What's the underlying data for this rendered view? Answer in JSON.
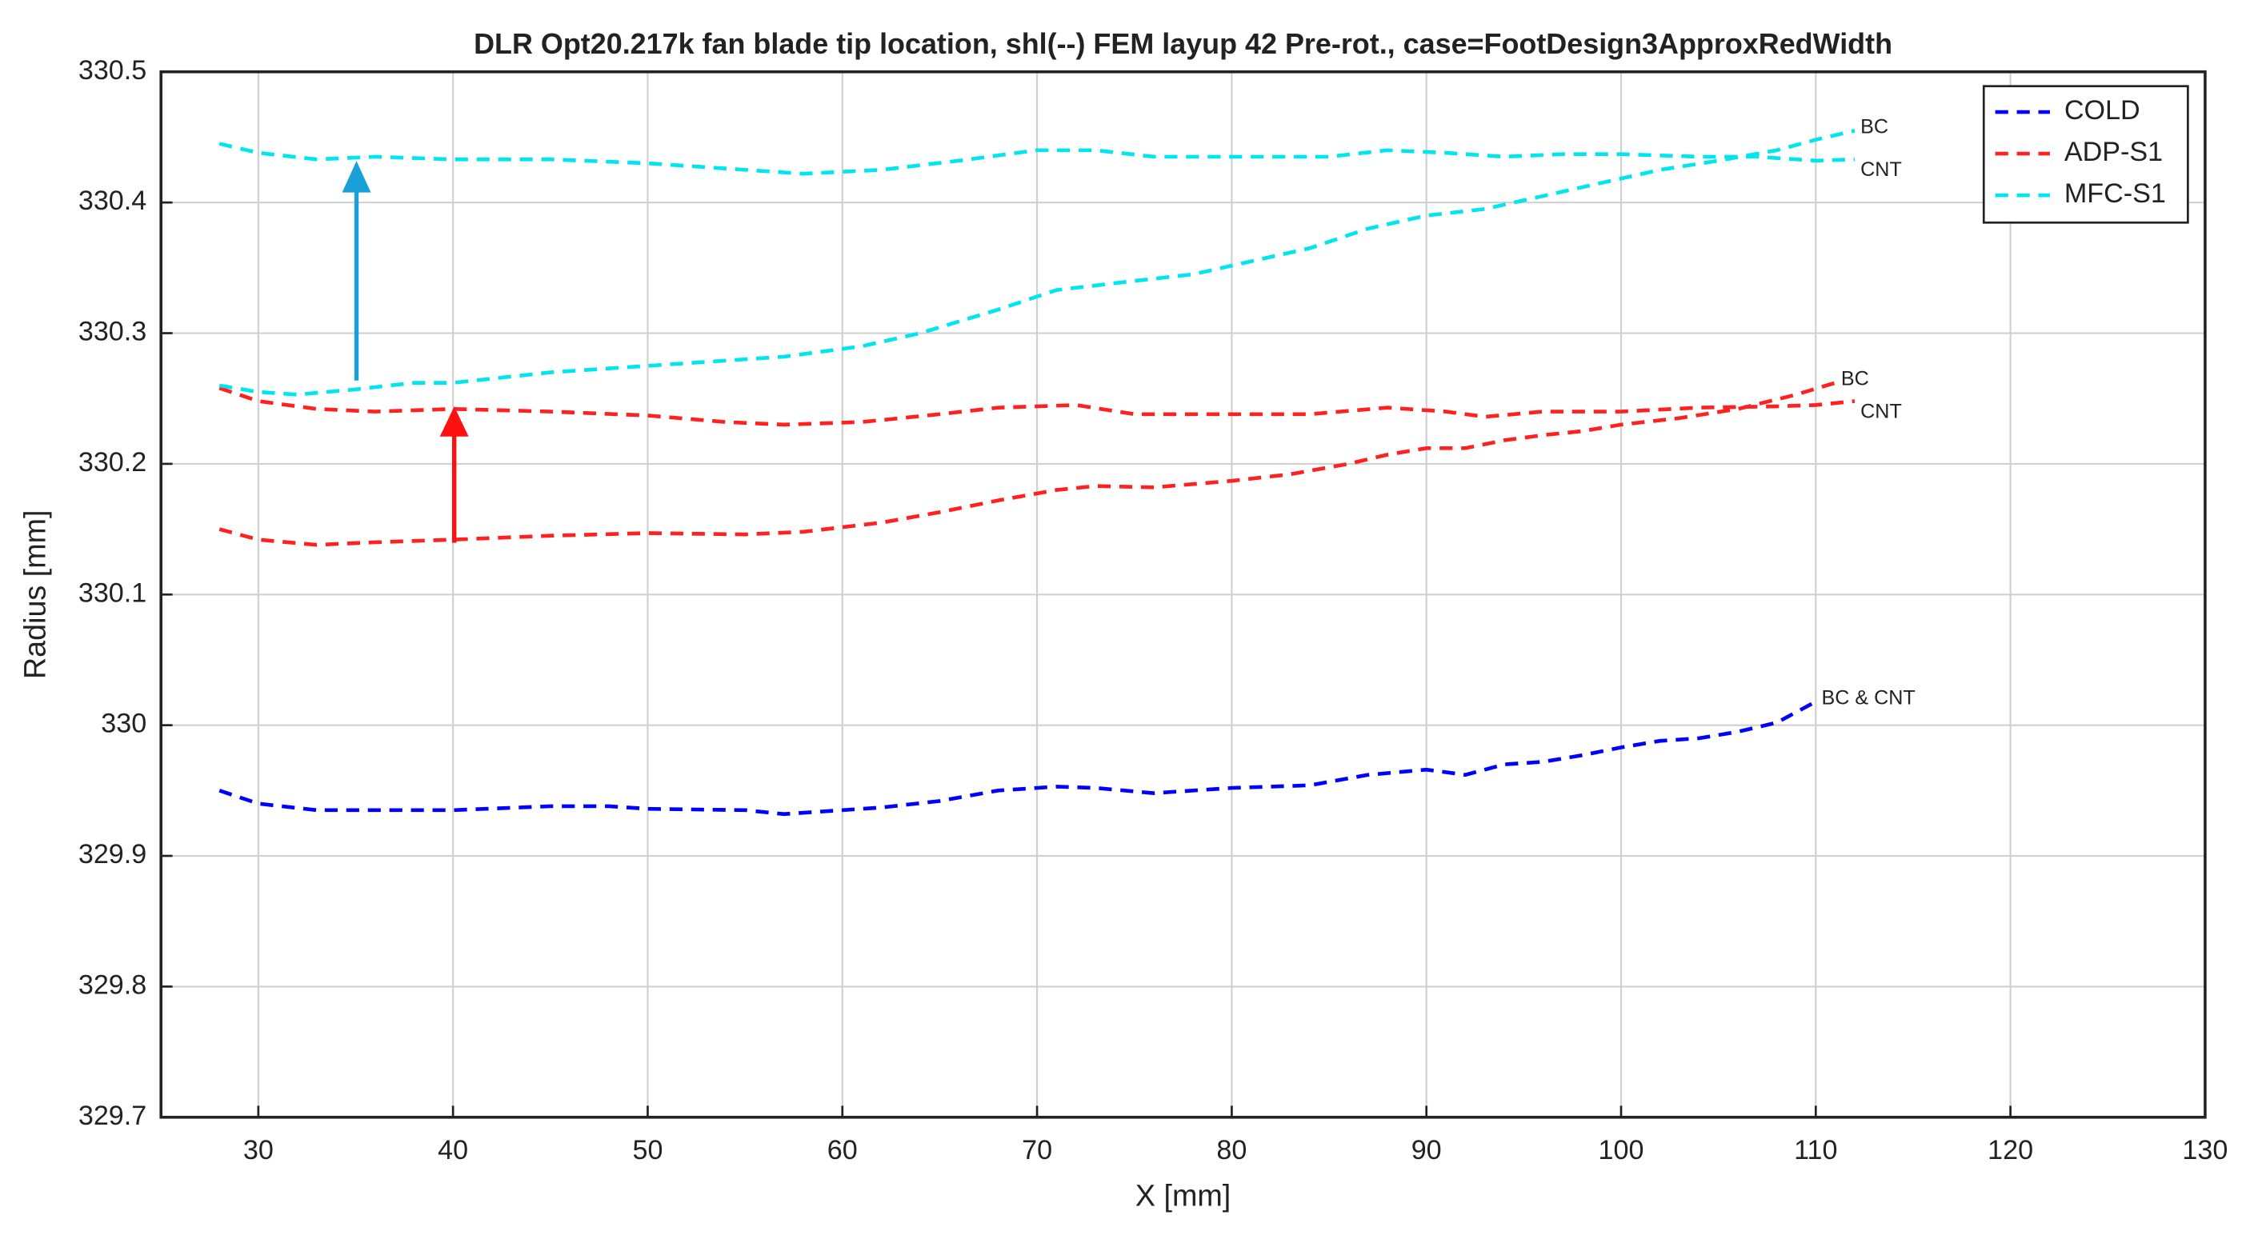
{
  "chart_data": {
    "type": "line",
    "title": "DLR Opt20.217k fan blade tip location, shl(--) FEM layup 42 Pre-rot., case=FootDesign3ApproxRedWidth",
    "x_label": "X [mm]",
    "y_label": "Radius [mm]",
    "xlim": [
      25,
      130
    ],
    "xticks": [
      30,
      40,
      50,
      60,
      70,
      80,
      90,
      100,
      110,
      120,
      130
    ],
    "ylim": [
      329.7,
      330.5
    ],
    "yticks": [
      329.7,
      329.8,
      329.9,
      330,
      330.1,
      330.2,
      330.3,
      330.4,
      330.5
    ],
    "grid": true,
    "legend": "upper right",
    "series": [
      {
        "name": "COLD",
        "color": "#0000ff",
        "curves": [
          {
            "label": "BC & CNT",
            "x": [
              28,
              30,
              33,
              36,
              40,
              45,
              48,
              50,
              55,
              57,
              60,
              62,
              65,
              68,
              71,
              73,
              76,
              80,
              84,
              87,
              90,
              92,
              94,
              96,
              98,
              100,
              102,
              104,
              106,
              108,
              110
            ],
            "values": [
              329.95,
              329.94,
              329.935,
              329.935,
              329.935,
              329.938,
              329.938,
              329.936,
              329.935,
              329.932,
              329.935,
              329.937,
              329.942,
              329.95,
              329.953,
              329.952,
              329.948,
              329.952,
              329.954,
              329.962,
              329.966,
              329.962,
              329.97,
              329.972,
              329.977,
              329.983,
              329.988,
              329.99,
              329.995,
              330.002,
              330.018
            ]
          }
        ]
      },
      {
        "name": "ADP-S1",
        "color": "#ff2020",
        "curves": [
          {
            "label": "BC",
            "x": [
              28,
              30,
              33,
              36,
              40,
              45,
              50,
              55,
              58,
              62,
              65,
              68,
              71,
              73,
              76,
              80,
              83,
              86,
              88,
              90,
              92,
              94,
              96,
              98,
              100,
              103,
              106,
              109,
              111
            ],
            "values": [
              330.15,
              330.142,
              330.138,
              330.14,
              330.142,
              330.145,
              330.147,
              330.146,
              330.148,
              330.155,
              330.163,
              330.172,
              330.18,
              330.183,
              330.182,
              330.187,
              330.192,
              330.2,
              330.207,
              330.212,
              330.212,
              330.218,
              330.222,
              330.225,
              330.23,
              330.235,
              330.242,
              330.253,
              330.262
            ]
          },
          {
            "label": "CNT",
            "x": [
              28,
              30,
              33,
              36,
              40,
              45,
              50,
              54,
              57,
              61,
              65,
              68,
              72,
              75,
              80,
              84,
              88,
              91,
              93,
              96,
              100,
              104,
              108,
              110,
              112
            ],
            "values": [
              330.258,
              330.248,
              330.242,
              330.24,
              330.242,
              330.24,
              330.237,
              330.232,
              330.23,
              330.232,
              330.238,
              330.243,
              330.245,
              330.238,
              330.238,
              330.238,
              330.243,
              330.24,
              330.236,
              330.24,
              330.24,
              330.243,
              330.244,
              330.245,
              330.248
            ]
          }
        ]
      },
      {
        "name": "MFC-S1",
        "color": "#00e5ee",
        "curves": [
          {
            "label": "BC",
            "x": [
              28,
              30,
              32,
              35,
              38,
              40,
              45,
              50,
              53,
              57,
              61,
              64,
              68,
              71,
              75,
              78,
              81,
              84,
              87,
              90,
              93,
              96,
              99,
              102,
              105,
              108,
              110,
              112
            ],
            "values": [
              330.26,
              330.255,
              330.253,
              330.257,
              330.262,
              330.262,
              330.27,
              330.275,
              330.278,
              330.282,
              330.29,
              330.3,
              330.318,
              330.333,
              330.34,
              330.345,
              330.355,
              330.365,
              330.38,
              330.39,
              330.395,
              330.405,
              330.415,
              330.425,
              330.432,
              330.44,
              330.448,
              330.455
            ]
          },
          {
            "label": "CNT",
            "x": [
              28,
              30,
              33,
              36,
              40,
              45,
              50,
              55,
              58,
              62,
              66,
              70,
              73,
              76,
              80,
              85,
              88,
              91,
              94,
              97,
              100,
              104,
              107,
              110,
              112
            ],
            "values": [
              330.445,
              330.438,
              330.433,
              330.435,
              330.433,
              330.433,
              330.43,
              330.425,
              330.422,
              330.425,
              330.432,
              330.44,
              330.44,
              330.435,
              330.435,
              330.435,
              330.44,
              330.438,
              330.435,
              330.437,
              330.437,
              330.435,
              330.435,
              330.432,
              330.433
            ]
          }
        ]
      }
    ]
  }
}
